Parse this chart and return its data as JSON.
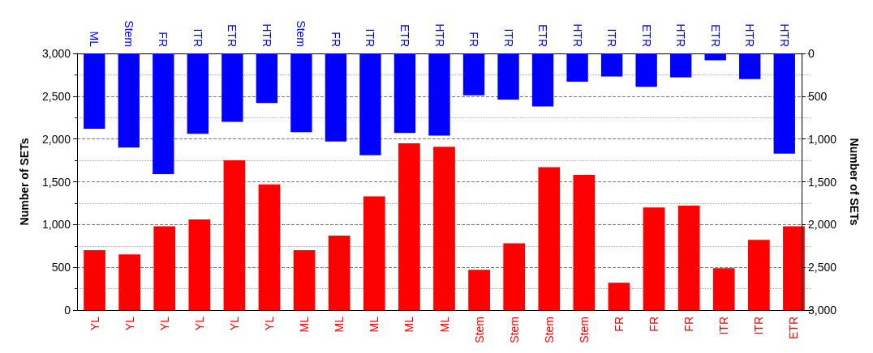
{
  "chart_data": [
    {
      "type": "bar",
      "categories": [
        "YL",
        "YL",
        "YL",
        "YL",
        "YL",
        "YL",
        "ML",
        "ML",
        "ML",
        "ML",
        "ML",
        "Stem",
        "Stem",
        "Stem",
        "Stem",
        "FR",
        "FR",
        "FR",
        "ITR",
        "ITR",
        "ETR"
      ],
      "series": [
        {
          "color": "#ff0000",
          "values": [
            700,
            650,
            980,
            1060,
            1750,
            1470,
            700,
            870,
            1330,
            1950,
            1910,
            470,
            780,
            1670,
            1580,
            320,
            1200,
            1220,
            490,
            820,
            980
          ]
        }
      ],
      "ylabel": "Number of SETs",
      "ylim": [
        0,
        3000
      ],
      "yticks": [
        0,
        500,
        {
          "value": 1000,
          "label": "1,000"
        },
        {
          "value": 1500,
          "label": "1,500"
        },
        {
          "value": 2000,
          "label": "2,000"
        },
        {
          "value": 2500,
          "label": "2,500"
        },
        {
          "value": 3000,
          "label": "3,000"
        }
      ],
      "grid": "y"
    },
    {
      "type": "bar",
      "categories": [
        "ML",
        "Stem",
        "FR",
        "ITR",
        "ETR",
        "HTR",
        "Stem",
        "FR",
        "ITR",
        "ETR",
        "HTR",
        "FR",
        "ITR",
        "ETR",
        "HTR",
        "ITR",
        "ETR",
        "HTR",
        "ETR",
        "HTR",
        "HTR"
      ],
      "series": [
        {
          "color": "#0000ff",
          "axis": "y2",
          "values": [
            880,
            1100,
            1410,
            940,
            800,
            580,
            920,
            1030,
            1190,
            930,
            960,
            490,
            540,
            620,
            330,
            270,
            390,
            280,
            80,
            300,
            1170
          ]
        }
      ],
      "y2label": "Number of SETs",
      "y2lim": [
        3000,
        0
      ],
      "y2ticks": [
        0,
        500,
        {
          "value": 1000,
          "label": "1,000"
        },
        {
          "value": 1500,
          "label": "1,500"
        },
        {
          "value": 2000,
          "label": "2,000"
        },
        {
          "value": 2500,
          "label": "2,500"
        },
        {
          "value": 3000,
          "label": "3,000"
        }
      ]
    }
  ]
}
